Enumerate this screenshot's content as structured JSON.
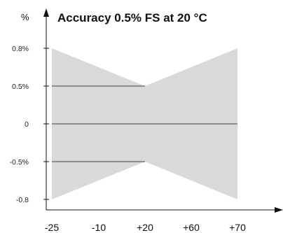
{
  "chart_data": {
    "type": "area",
    "title": "Accuracy 0.5% FS at 20 °C",
    "ylabel": "%",
    "xlabel": "",
    "x_ticks": [
      "-25",
      "-10",
      "+20",
      "+60",
      "+70"
    ],
    "y_ticks": [
      "0.8%",
      "0.5%",
      "0",
      "-0.5%",
      "-0.8"
    ],
    "series": [
      {
        "upper": [
          {
            "x": "-25",
            "y": 0.8
          },
          {
            "x": "+20",
            "y": 0.5
          },
          {
            "x": "+70",
            "y": 0.8
          }
        ],
        "lower": [
          {
            "x": "-25",
            "y": -0.8
          },
          {
            "x": "+20",
            "y": -0.5
          },
          {
            "x": "+70",
            "y": -0.8
          }
        ]
      }
    ],
    "reference_lines": [
      {
        "y": 0.5,
        "from": "-25",
        "to": "+20"
      },
      {
        "y": 0,
        "from": "-25",
        "to": "+70"
      },
      {
        "y": -0.5,
        "from": "-25",
        "to": "+20"
      }
    ],
    "band_color": "#d9d9d9",
    "line_color": "#777777",
    "axis_color": "#111111",
    "grid": false,
    "legend": false
  }
}
